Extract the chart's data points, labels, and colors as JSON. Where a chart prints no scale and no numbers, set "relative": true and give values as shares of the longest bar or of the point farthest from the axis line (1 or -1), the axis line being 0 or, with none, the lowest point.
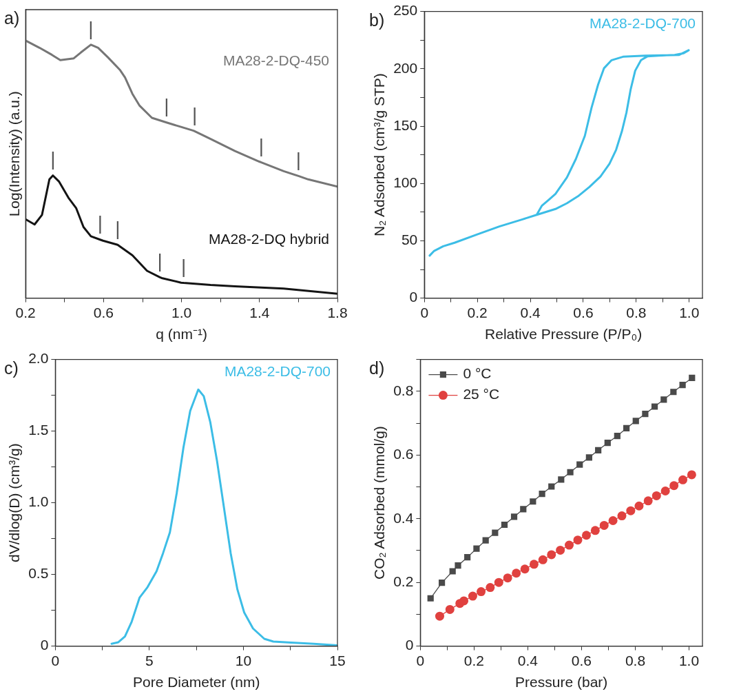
{
  "chart_data": [
    {
      "type": "line",
      "title": "a)",
      "xlabel": "q (nm⁻¹)",
      "ylabel": "Log(Intensity) (a.u.)",
      "relative": true,
      "tick_labels": "x",
      "xlim": [
        0.2,
        1.8
      ],
      "xticks": [
        0.2,
        {
          "value": 0.4,
          "label": null
        },
        0.6,
        {
          "value": 0.8,
          "label": null
        },
        {
          "value": 1.0,
          "label": "1.0"
        },
        {
          "value": 1.2,
          "label": null
        },
        1.4,
        {
          "value": 1.6,
          "label": null
        },
        1.8
      ],
      "series": [
        {
          "name": "MA28-2-DQ-450",
          "color": "#767676",
          "x": [
            0.2,
            0.271,
            0.334,
            0.378,
            0.447,
            0.484,
            0.535,
            0.572,
            0.622,
            0.685,
            0.71,
            0.748,
            0.785,
            0.848,
            0.923,
            1.0,
            1.061,
            1.067,
            1.149,
            1.274,
            1.399,
            1.409,
            1.524,
            1.6,
            1.65,
            1.8
          ],
          "values": [
            1.0,
            0.972,
            0.945,
            0.924,
            0.931,
            0.954,
            0.984,
            0.972,
            0.935,
            0.885,
            0.857,
            0.793,
            0.747,
            0.7,
            0.682,
            0.664,
            0.65,
            0.648,
            0.618,
            0.571,
            0.53,
            0.527,
            0.493,
            0.474,
            0.461,
            0.433
          ]
        },
        {
          "name": "MA28-2-DQ hybrid",
          "color": "#141414",
          "x": [
            0.2,
            0.246,
            0.284,
            0.322,
            0.34,
            0.372,
            0.422,
            0.459,
            0.497,
            0.535,
            0.582,
            0.597,
            0.672,
            0.748,
            0.823,
            0.889,
            0.898,
            0.998,
            1.011,
            1.149,
            1.274,
            1.524,
            1.8
          ],
          "values": [
            0.306,
            0.286,
            0.323,
            0.461,
            0.476,
            0.452,
            0.387,
            0.35,
            0.276,
            0.24,
            0.227,
            0.223,
            0.207,
            0.166,
            0.106,
            0.081,
            0.078,
            0.06,
            0.059,
            0.051,
            0.046,
            0.037,
            0.017
          ]
        }
      ],
      "annotations": [
        {
          "text": "|",
          "x": 0.535,
          "y": 0.984
        },
        {
          "text": "|",
          "x": 0.923,
          "y": 0.682
        },
        {
          "text": "|",
          "x": 1.067,
          "y": 0.648
        },
        {
          "text": "|",
          "x": 1.409,
          "y": 0.527
        },
        {
          "text": "|",
          "x": 1.6,
          "y": 0.474
        },
        {
          "text": "|",
          "x": 0.34,
          "y": 0.476
        },
        {
          "text": "|",
          "x": 0.582,
          "y": 0.227
        },
        {
          "text": "|",
          "x": 0.672,
          "y": 0.207
        },
        {
          "text": "|",
          "x": 0.889,
          "y": 0.081
        },
        {
          "text": "|",
          "x": 1.011,
          "y": 0.059
        }
      ]
    },
    {
      "type": "line",
      "title": "b)",
      "xlabel": "Relative Pressure (P/P₀)",
      "ylabel": "N₂ Adsorbed (cm³/g STP)",
      "xlim": [
        0,
        1.05
      ],
      "xticks": [
        0,
        {
          "value": 0.1,
          "label": null
        },
        0.2,
        {
          "value": 0.3,
          "label": null
        },
        0.4,
        {
          "value": 0.5,
          "label": null
        },
        0.6,
        {
          "value": 0.7,
          "label": null
        },
        0.8,
        {
          "value": 0.9,
          "label": null
        },
        {
          "value": 1.0,
          "label": "1.0"
        }
      ],
      "ylim": [
        0,
        250
      ],
      "yticks": [
        0,
        {
          "value": 25,
          "label": null
        },
        50,
        {
          "value": 75,
          "label": null
        },
        100,
        {
          "value": 125,
          "label": null
        },
        150,
        {
          "value": 175,
          "label": null
        },
        200,
        {
          "value": 225,
          "label": null
        },
        250
      ],
      "series": [
        {
          "name": "MA28-2-DQ-700",
          "color": "#3cbde6",
          "x": [
            0.02,
            0.037,
            0.071,
            0.114,
            0.198,
            0.283,
            0.368,
            0.424,
            0.495,
            0.538,
            0.58,
            0.623,
            0.665,
            0.699,
            0.724,
            0.746,
            0.763,
            0.779,
            0.796,
            0.818,
            0.843,
            0.885,
            0.945,
            0.979,
            0.998,
            0.962,
            0.835,
            0.75,
            0.707,
            0.678,
            0.656,
            0.631,
            0.606,
            0.572,
            0.538,
            0.495,
            0.47,
            0.444,
            0.424
          ],
          "values": [
            37.1,
            41.2,
            45.2,
            48.3,
            55.4,
            62.5,
            68.5,
            72.6,
            77.7,
            82.7,
            88.8,
            96.9,
            106.1,
            117.2,
            129.4,
            145.6,
            161.8,
            182.1,
            198.3,
            207.5,
            210.9,
            211.5,
            212.1,
            213.6,
            216.2,
            212.1,
            211.5,
            210.5,
            207.5,
            200.4,
            186.2,
            165.9,
            141.6,
            121.3,
            105.1,
            90.9,
            85.8,
            80.7,
            72.6
          ]
        }
      ]
    },
    {
      "type": "line",
      "title": "c)",
      "xlabel": "Pore Diameter (nm)",
      "ylabel": "dV/dlog(D) (cm³/g)",
      "xlim": [
        0,
        15
      ],
      "xticks": [
        0,
        {
          "value": 2.5,
          "label": null
        },
        5,
        {
          "value": 7.5,
          "label": null
        },
        10,
        {
          "value": 12.5,
          "label": null
        },
        15
      ],
      "ylim": [
        0,
        2.0
      ],
      "yticks": [
        0,
        {
          "value": 0.25,
          "label": null
        },
        0.5,
        {
          "value": 0.75,
          "label": null
        },
        {
          "value": 1.0,
          "label": "1.0"
        },
        {
          "value": 1.25,
          "label": null
        },
        1.5,
        {
          "value": 1.75,
          "label": null
        },
        {
          "value": 2.0,
          "label": "2.0"
        }
      ],
      "series": [
        {
          "name": "MA28-2-DQ-700",
          "color": "#3cbde6",
          "x": [
            2.99,
            3.35,
            3.7,
            4.06,
            4.48,
            4.9,
            5.38,
            5.73,
            6.09,
            6.45,
            6.81,
            7.17,
            7.6,
            7.89,
            8.24,
            8.6,
            8.96,
            9.32,
            9.68,
            10.04,
            10.51,
            11.11,
            11.59,
            12.54,
            13.74,
            15.0
          ],
          "values": [
            0.016,
            0.027,
            0.067,
            0.171,
            0.339,
            0.411,
            0.522,
            0.65,
            0.794,
            1.065,
            1.385,
            1.641,
            1.79,
            1.744,
            1.561,
            1.289,
            0.97,
            0.65,
            0.395,
            0.235,
            0.123,
            0.051,
            0.032,
            0.024,
            0.016,
            0.005
          ]
        }
      ]
    },
    {
      "type": "line",
      "title": "d)",
      "xlabel": "Pressure (bar)",
      "ylabel": "CO₂ Adsorbed (mmol/g)",
      "legend": "top left",
      "xlim": [
        0,
        1.05
      ],
      "xticks": [
        0,
        {
          "value": 0.1,
          "label": null
        },
        0.2,
        {
          "value": 0.3,
          "label": null
        },
        0.4,
        {
          "value": 0.5,
          "label": null
        },
        0.6,
        {
          "value": 0.7,
          "label": null
        },
        0.8,
        {
          "value": 0.9,
          "label": null
        },
        {
          "value": 1.0,
          "label": "1.0"
        }
      ],
      "ylim": [
        0,
        0.9
      ],
      "yticks": [
        0,
        {
          "value": 0.1,
          "label": null
        },
        0.2,
        {
          "value": 0.3,
          "label": null
        },
        0.4,
        {
          "value": 0.5,
          "label": null
        },
        0.6,
        {
          "value": 0.7,
          "label": null
        },
        0.8,
        {
          "value": 0.9,
          "label": null
        }
      ],
      "series": [
        {
          "name": "0 °C",
          "color": "#4a4a4a",
          "marker": "square",
          "x": [
            0.038,
            0.08,
            0.12,
            0.14,
            0.175,
            0.209,
            0.243,
            0.278,
            0.313,
            0.349,
            0.383,
            0.419,
            0.453,
            0.488,
            0.524,
            0.558,
            0.593,
            0.628,
            0.662,
            0.697,
            0.733,
            0.767,
            0.802,
            0.837,
            0.872,
            0.906,
            0.942,
            0.976,
            1.011
          ],
          "values": [
            0.15,
            0.199,
            0.235,
            0.253,
            0.279,
            0.306,
            0.332,
            0.356,
            0.381,
            0.406,
            0.43,
            0.454,
            0.478,
            0.501,
            0.523,
            0.546,
            0.57,
            0.592,
            0.615,
            0.638,
            0.66,
            0.684,
            0.707,
            0.729,
            0.752,
            0.774,
            0.798,
            0.82,
            0.842
          ]
        },
        {
          "name": "25 °C",
          "color": "#e0413f",
          "marker": "circle",
          "x": [
            0.072,
            0.11,
            0.147,
            0.162,
            0.195,
            0.226,
            0.26,
            0.292,
            0.325,
            0.357,
            0.389,
            0.423,
            0.456,
            0.488,
            0.521,
            0.554,
            0.586,
            0.618,
            0.651,
            0.684,
            0.717,
            0.75,
            0.783,
            0.814,
            0.848,
            0.879,
            0.912,
            0.944,
            0.977,
            1.01
          ],
          "values": [
            0.094,
            0.115,
            0.134,
            0.142,
            0.157,
            0.171,
            0.184,
            0.2,
            0.214,
            0.229,
            0.242,
            0.257,
            0.271,
            0.287,
            0.301,
            0.317,
            0.333,
            0.348,
            0.363,
            0.379,
            0.394,
            0.409,
            0.425,
            0.44,
            0.456,
            0.472,
            0.487,
            0.504,
            0.522,
            0.538
          ]
        }
      ]
    }
  ]
}
